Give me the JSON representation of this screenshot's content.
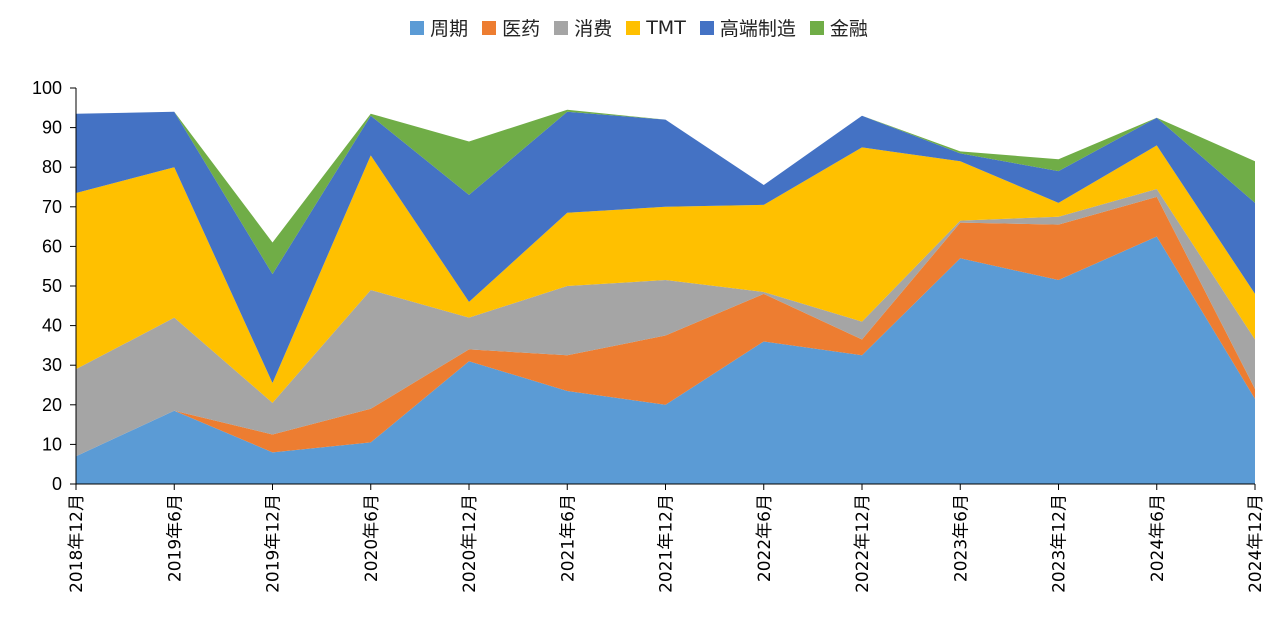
{
  "chart_data": {
    "type": "area",
    "stacked": true,
    "categories": [
      "2018年12月",
      "2019年6月",
      "2019年12月",
      "2020年6月",
      "2020年12月",
      "2021年6月",
      "2021年12月",
      "2022年6月",
      "2022年12月",
      "2023年6月",
      "2023年12月",
      "2024年6月",
      "2024年12月"
    ],
    "ylim": [
      0,
      100
    ],
    "yticks": [
      0,
      10,
      20,
      30,
      40,
      50,
      60,
      70,
      80,
      90,
      100
    ],
    "legend_position": "top",
    "series": [
      {
        "name": "周期",
        "color": "#5B9BD5",
        "values": [
          7,
          18.5,
          8,
          10.5,
          31,
          23.5,
          20,
          36,
          32.5,
          57,
          51.5,
          62.5,
          21.5
        ]
      },
      {
        "name": "医药",
        "color": "#ED7D31",
        "values": [
          0,
          0,
          4.5,
          8.5,
          3,
          9,
          17.5,
          12,
          4,
          9,
          14,
          10,
          2.5
        ]
      },
      {
        "name": "消费",
        "color": "#A5A5A5",
        "values": [
          22,
          23.5,
          8,
          30,
          8,
          17.5,
          14,
          0.5,
          4.5,
          0.5,
          2,
          2,
          12.5
        ]
      },
      {
        "name": "TMT",
        "color": "#FFC000",
        "values": [
          44.5,
          38,
          5,
          34,
          4,
          18.5,
          18.5,
          22,
          44,
          15,
          3.5,
          11,
          11.5
        ]
      },
      {
        "name": "高端制造",
        "color": "#4472C4",
        "values": [
          20,
          14,
          27.5,
          10,
          27,
          25.5,
          22,
          5,
          8,
          2,
          8,
          7,
          23
        ]
      },
      {
        "name": "金融",
        "color": "#70AD47",
        "values": [
          0,
          0,
          8,
          0.5,
          13.5,
          0.5,
          0,
          0,
          0,
          0.5,
          3,
          0,
          10.5
        ]
      }
    ]
  }
}
